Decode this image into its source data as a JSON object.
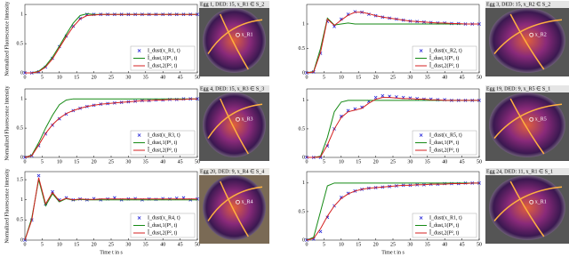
{
  "chart_data": [
    {
      "type": "line",
      "ylabel": "Normalized Fluorescence Intensity",
      "caption": "Egg 1, DED: 15, x_R1 ∈ S_2",
      "point_label": "x_R1",
      "x": [
        0,
        2,
        4,
        6,
        8,
        10,
        12,
        14,
        16,
        18,
        20,
        22,
        24,
        26,
        28,
        30,
        32,
        34,
        36,
        38,
        40,
        42,
        44,
        46,
        48,
        50
      ],
      "xlim": [
        0,
        50
      ],
      "xticks": [
        0,
        5,
        10,
        15,
        20,
        25,
        30,
        35,
        40,
        45,
        50
      ],
      "ylim": [
        0,
        1.17
      ],
      "yticks": [
        0,
        0.5,
        1
      ],
      "legend": "lower right",
      "series": [
        {
          "name": "I_dust(x_R1, t)",
          "color": "#2323d8",
          "style": "marker",
          "values": [
            0,
            0,
            0.02,
            0.1,
            0.25,
            0.45,
            0.63,
            0.8,
            0.93,
            1,
            1,
            1,
            1,
            1,
            1,
            1,
            1,
            1,
            1,
            1,
            1,
            1,
            1,
            1,
            1,
            1
          ]
        },
        {
          "name": "Î_dust,1(P¹, t)",
          "color": "#168a16",
          "style": "line",
          "values": [
            0,
            0,
            0.03,
            0.12,
            0.27,
            0.46,
            0.66,
            0.85,
            0.98,
            1.01,
            1,
            1,
            1,
            1,
            1,
            1,
            1,
            1,
            1,
            1,
            1,
            1,
            1,
            1,
            1,
            1
          ]
        },
        {
          "name": "Î_dust,2(P², t)",
          "color": "#d42020",
          "style": "line",
          "values": [
            0,
            0,
            0.02,
            0.1,
            0.24,
            0.43,
            0.62,
            0.79,
            0.92,
            0.98,
            0.99,
            1,
            1,
            1,
            1,
            1,
            1,
            1,
            1,
            1,
            1,
            1,
            1,
            1,
            1,
            1
          ]
        }
      ]
    },
    {
      "type": "line",
      "caption": "Egg 3, DED: 15, x_R2 ∈ S_2",
      "point_label": "x_R2",
      "x": [
        0,
        2,
        4,
        6,
        8,
        10,
        12,
        14,
        16,
        18,
        20,
        22,
        24,
        26,
        28,
        30,
        32,
        34,
        36,
        38,
        40,
        42,
        44,
        46,
        48,
        50
      ],
      "xlim": [
        0,
        50
      ],
      "xticks": [
        0,
        5,
        10,
        15,
        20,
        25,
        30,
        35,
        40,
        45,
        50
      ],
      "ylim": [
        0,
        1.4
      ],
      "yticks": [
        0,
        0.5,
        1
      ],
      "legend": "lower right",
      "series": [
        {
          "name": "I_dust(x_R2, t)",
          "color": "#2323d8",
          "style": "marker",
          "values": [
            0,
            0.02,
            0.4,
            1.05,
            0.95,
            1.1,
            1.2,
            1.25,
            1.24,
            1.2,
            1.17,
            1.14,
            1.12,
            1.1,
            1.08,
            1.06,
            1.05,
            1.04,
            1.03,
            1.02,
            1.02,
            1.01,
            1.01,
            1,
            1,
            1
          ]
        },
        {
          "name": "Î_dust,1(P¹, t)",
          "color": "#168a16",
          "style": "line",
          "values": [
            0,
            0.03,
            0.5,
            1.12,
            0.98,
            1,
            1.02,
            1,
            1,
            1,
            1,
            1,
            1,
            1,
            1,
            1,
            1,
            1,
            1,
            1,
            1,
            1,
            1,
            1,
            1,
            1
          ]
        },
        {
          "name": "Î_dust,2(P², t)",
          "color": "#d42020",
          "style": "line",
          "values": [
            0,
            0.02,
            0.42,
            1.1,
            0.97,
            1.08,
            1.18,
            1.24,
            1.24,
            1.21,
            1.17,
            1.14,
            1.12,
            1.1,
            1.08,
            1.06,
            1.05,
            1.04,
            1.03,
            1.02,
            1.02,
            1.01,
            1.01,
            1,
            1,
            1
          ]
        }
      ]
    },
    {
      "type": "line",
      "ylabel": "Normalized Fluorescence Intensity",
      "caption": "Egg 4, DED: 15, x_R3 ∈ S_3",
      "point_label": "x_R3",
      "x": [
        0,
        2,
        4,
        6,
        8,
        10,
        12,
        14,
        16,
        18,
        20,
        22,
        24,
        26,
        28,
        30,
        32,
        34,
        36,
        38,
        40,
        42,
        44,
        46,
        48,
        50
      ],
      "xlim": [
        0,
        50
      ],
      "xticks": [
        0,
        5,
        10,
        15,
        20,
        25,
        30,
        35,
        40,
        45,
        50
      ],
      "ylim": [
        0,
        1.17
      ],
      "yticks": [
        0,
        0.5,
        1
      ],
      "legend": "lower right",
      "series": [
        {
          "name": "I_dust(x_R3, t)",
          "color": "#2323d8",
          "style": "marker",
          "values": [
            0,
            0.03,
            0.2,
            0.4,
            0.55,
            0.66,
            0.74,
            0.8,
            0.84,
            0.87,
            0.89,
            0.91,
            0.92,
            0.93,
            0.94,
            0.95,
            0.96,
            0.97,
            0.97,
            0.98,
            0.98,
            0.99,
            0.99,
            1,
            1,
            1
          ]
        },
        {
          "name": "Î_dust,1(P¹, t)",
          "color": "#168a16",
          "style": "line",
          "values": [
            0,
            0.04,
            0.25,
            0.5,
            0.72,
            0.9,
            0.98,
            1,
            1,
            1,
            1,
            1,
            1,
            1,
            1,
            1,
            1,
            1,
            1,
            1,
            1,
            1,
            1,
            1,
            1,
            1
          ]
        },
        {
          "name": "Î_dust,2(P², t)",
          "color": "#d42020",
          "style": "line",
          "values": [
            0,
            0.03,
            0.21,
            0.41,
            0.56,
            0.67,
            0.75,
            0.8,
            0.84,
            0.87,
            0.89,
            0.91,
            0.92,
            0.93,
            0.94,
            0.95,
            0.96,
            0.97,
            0.97,
            0.98,
            0.98,
            0.99,
            0.99,
            0.99,
            1,
            1
          ]
        }
      ]
    },
    {
      "type": "line",
      "caption": "Egg 19, DED: 9, x_R5 ∈ S_1",
      "point_label": "x_R5",
      "x": [
        0,
        2,
        4,
        6,
        8,
        10,
        12,
        14,
        16,
        18,
        20,
        22,
        24,
        26,
        28,
        30,
        32,
        34,
        36,
        38,
        40,
        42,
        44,
        46,
        48,
        50
      ],
      "xlim": [
        0,
        50
      ],
      "xticks": [
        0,
        5,
        10,
        15,
        20,
        25,
        30,
        35,
        40,
        45,
        50
      ],
      "ylim": [
        0,
        1.2
      ],
      "yticks": [
        0,
        0.5,
        1
      ],
      "legend": "lower right",
      "series": [
        {
          "name": "I_dust(x_R5, t)",
          "color": "#2323d8",
          "style": "marker",
          "values": [
            0,
            0,
            0,
            0.2,
            0.5,
            0.72,
            0.82,
            0.85,
            0.88,
            0.98,
            1.05,
            1.08,
            1.07,
            1.06,
            1.05,
            1.04,
            1.03,
            1.02,
            1.02,
            1.01,
            1.01,
            1,
            1,
            1,
            1,
            1
          ]
        },
        {
          "name": "Î_dust,1(P¹, t)",
          "color": "#168a16",
          "style": "line",
          "values": [
            0,
            0,
            0.02,
            0.35,
            0.8,
            0.97,
            1,
            1,
            1,
            1,
            1,
            1,
            1,
            1,
            1,
            1,
            1,
            1,
            1,
            1,
            1,
            1,
            1,
            1,
            1,
            1
          ]
        },
        {
          "name": "Î_dust,2(P², t)",
          "color": "#d42020",
          "style": "line",
          "values": [
            0,
            0,
            0.01,
            0.22,
            0.5,
            0.7,
            0.8,
            0.83,
            0.86,
            0.95,
            1.02,
            1.05,
            1.05,
            1.04,
            1.03,
            1.03,
            1.02,
            1.02,
            1.01,
            1.01,
            1,
            1,
            1,
            1,
            1,
            1
          ]
        }
      ]
    },
    {
      "type": "line",
      "ylabel": "Normalized Fluorescence Intensity",
      "xlabel": "Time t in s",
      "caption": "Egg 20, DED: 9, x_R4 ∈ S_4",
      "point_label": "x_R4",
      "x": [
        0,
        2,
        4,
        6,
        8,
        10,
        12,
        14,
        16,
        18,
        20,
        22,
        24,
        26,
        28,
        30,
        32,
        34,
        36,
        38,
        40,
        42,
        44,
        46,
        48,
        50
      ],
      "xlim": [
        0,
        50
      ],
      "xticks": [
        0,
        5,
        10,
        15,
        20,
        25,
        30,
        35,
        40,
        45,
        50
      ],
      "ylim": [
        0,
        1.7
      ],
      "yticks": [
        0,
        0.5,
        1,
        1.5
      ],
      "legend": "lower right",
      "series": [
        {
          "name": "I_dust(x_R4, t)",
          "color": "#2323d8",
          "style": "marker",
          "values": [
            0,
            0.5,
            1.6,
            0.9,
            1.2,
            1,
            1.05,
            1,
            1.02,
            1,
            1.03,
            1,
            1.02,
            1.05,
            1,
            1.02,
            1.03,
            1,
            1.02,
            1.01,
            1.03,
            1.02,
            1.04,
            1.05,
            1,
            1.02
          ]
        },
        {
          "name": "Î_dust,1(P¹, t)",
          "color": "#168a16",
          "style": "line",
          "values": [
            0,
            0.55,
            1.5,
            0.85,
            1.15,
            0.95,
            1.03,
            0.99,
            1.01,
            1,
            1,
            1,
            1,
            1,
            1,
            1,
            1,
            1,
            1,
            1,
            1,
            1,
            1,
            1,
            1,
            1
          ]
        },
        {
          "name": "Î_dust,2(P², t)",
          "color": "#d42020",
          "style": "line",
          "values": [
            0,
            0.5,
            1.55,
            0.9,
            1.18,
            0.97,
            1.04,
            1,
            1.02,
            1.01,
            1.01,
            1.02,
            1.02,
            1.02,
            1.02,
            1.02,
            1.02,
            1.02,
            1.02,
            1.02,
            1.02,
            1.02,
            1.02,
            1.02,
            1.02,
            1.02
          ]
        }
      ]
    },
    {
      "type": "line",
      "xlabel": "Time t in s",
      "caption": "Egg 24, DED: 11, x_R1 ∈ S_1",
      "point_label": "x_R1",
      "x": [
        0,
        2,
        4,
        6,
        8,
        10,
        12,
        14,
        16,
        18,
        20,
        22,
        24,
        26,
        28,
        30,
        32,
        34,
        36,
        38,
        40,
        42,
        44,
        46,
        48,
        50
      ],
      "xlim": [
        0,
        50
      ],
      "xticks": [
        0,
        5,
        10,
        15,
        20,
        25,
        30,
        35,
        40,
        45,
        50
      ],
      "ylim": [
        0,
        1.2
      ],
      "yticks": [
        0,
        0.5,
        1
      ],
      "legend": "lower right",
      "series": [
        {
          "name": "I_dust(x_R1, t)",
          "color": "#2323d8",
          "style": "marker",
          "values": [
            0,
            0.02,
            0.15,
            0.4,
            0.6,
            0.75,
            0.82,
            0.86,
            0.89,
            0.91,
            0.92,
            0.93,
            0.94,
            0.95,
            0.96,
            0.96,
            0.97,
            0.97,
            0.98,
            0.98,
            0.99,
            0.99,
            0.99,
            1,
            1,
            1
          ]
        },
        {
          "name": "Î_dust,1(P¹, t)",
          "color": "#168a16",
          "style": "line",
          "values": [
            0,
            0.05,
            0.5,
            0.95,
            1,
            1,
            1,
            1,
            1,
            1,
            1,
            1,
            1,
            1,
            1,
            1,
            1,
            1,
            1,
            1,
            1,
            1,
            1,
            1,
            1,
            1
          ]
        },
        {
          "name": "Î_dust,2(P², t)",
          "color": "#d42020",
          "style": "line",
          "values": [
            0,
            0.03,
            0.2,
            0.42,
            0.6,
            0.73,
            0.81,
            0.86,
            0.89,
            0.91,
            0.92,
            0.93,
            0.94,
            0.95,
            0.96,
            0.96,
            0.97,
            0.97,
            0.98,
            0.98,
            0.98,
            0.99,
            0.99,
            0.99,
            1,
            1
          ]
        }
      ]
    }
  ]
}
